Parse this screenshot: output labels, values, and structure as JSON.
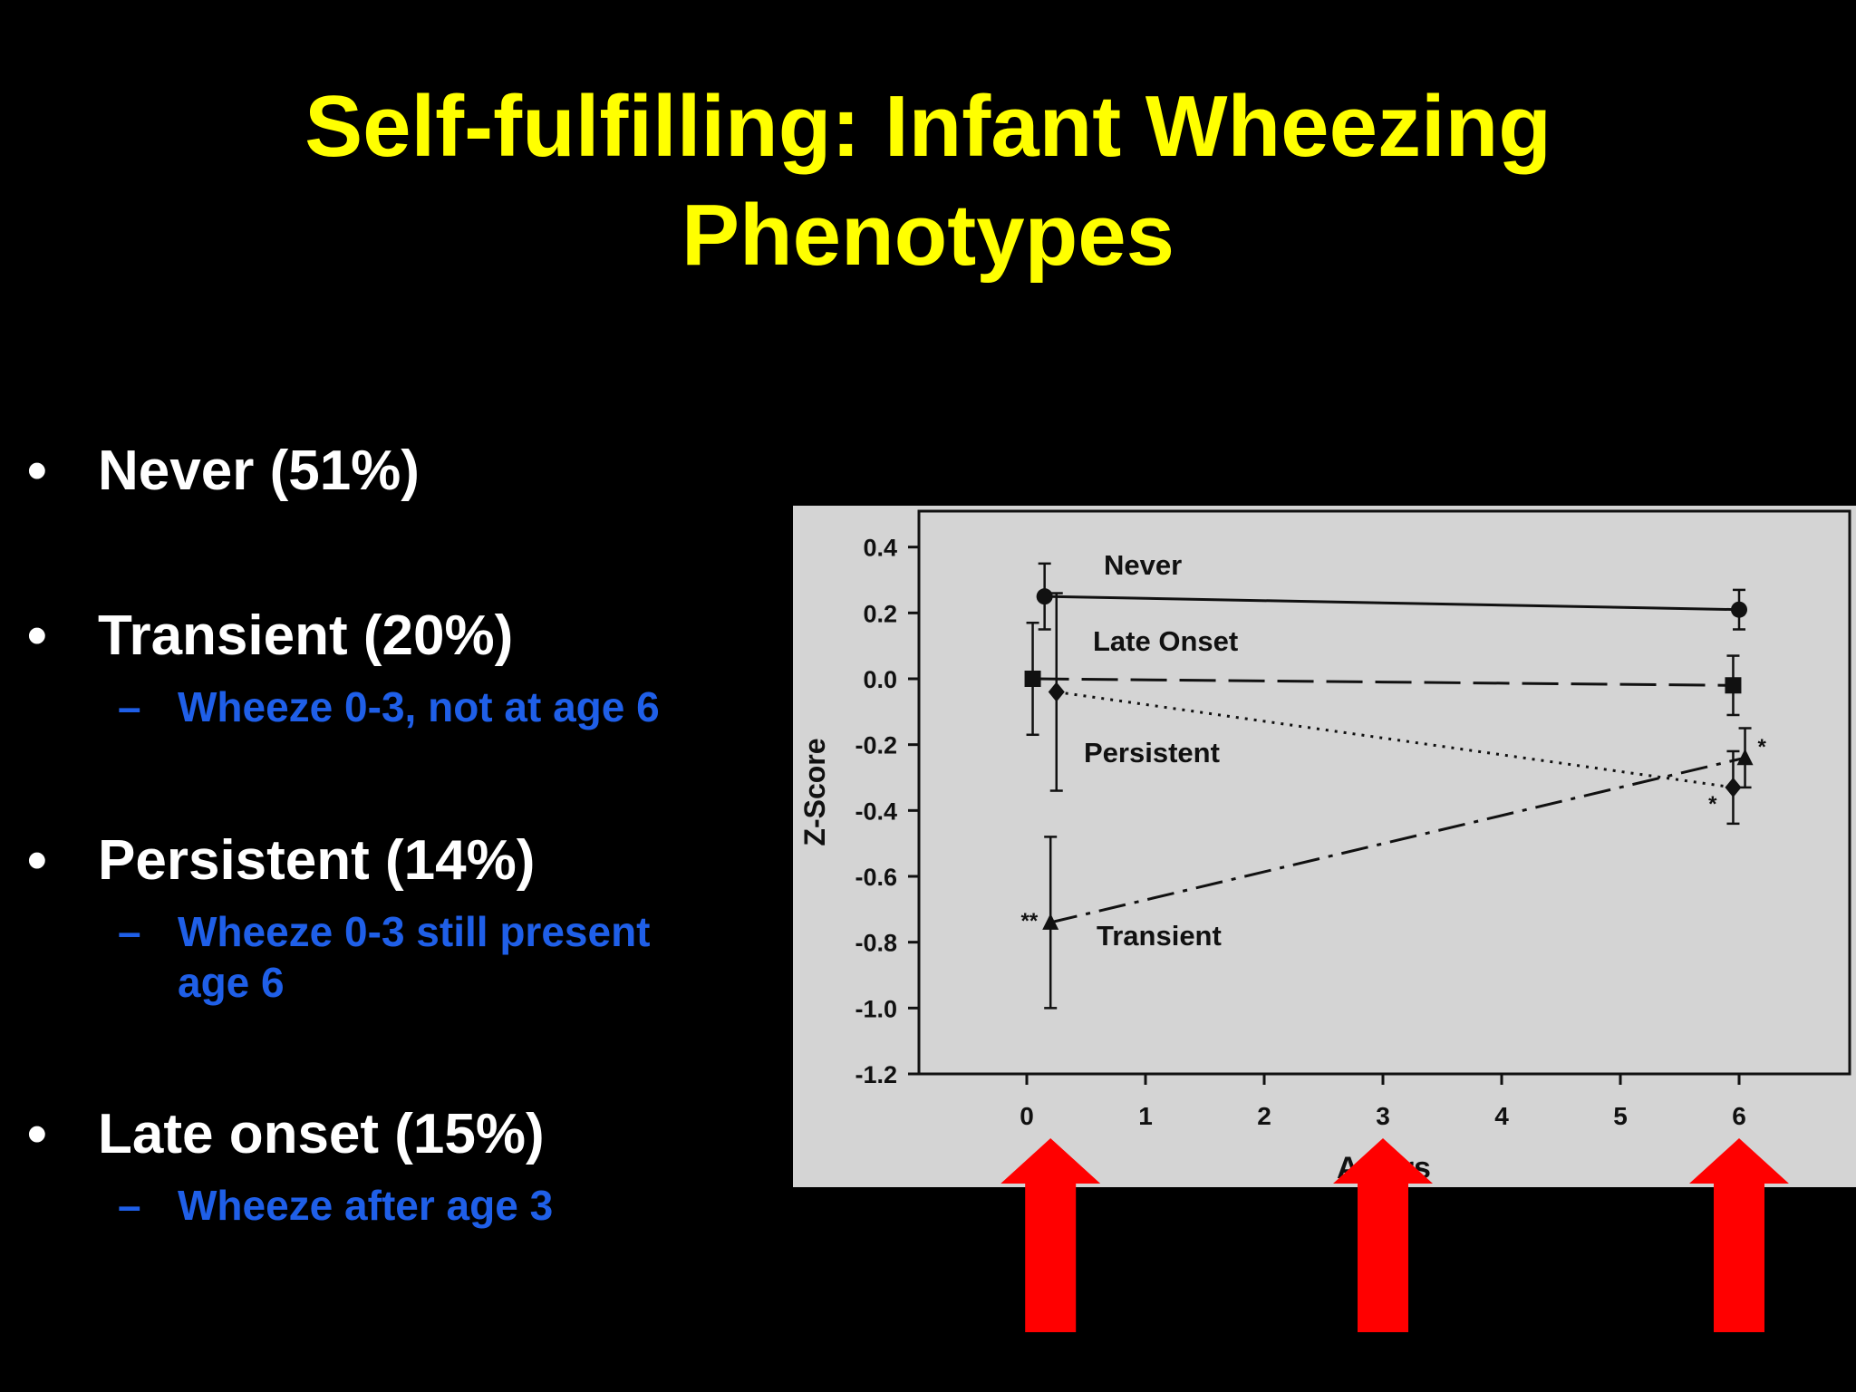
{
  "slide": {
    "title_line1": "Self-fulfilling: Infant Wheezing",
    "title_line2": "Phenotypes",
    "bullets": [
      {
        "label": "Never  (51%)"
      },
      {
        "label": "Transient (20%)",
        "sub": [
          "Wheeze 0-3, not at age 6"
        ]
      },
      {
        "label": "Persistent (14%)",
        "sub": [
          "Wheeze 0-3 still present",
          "age 6"
        ]
      },
      {
        "label": "Late onset (15%)",
        "sub": [
          "Wheeze after age 3"
        ]
      }
    ],
    "bullet_glyph": "•",
    "sub_glyph": "–"
  },
  "colors": {
    "title": "#ffff00",
    "bullet_text": "#ffffff",
    "sub_text": "#1f5fe8",
    "chart_bg": "#d4d4d4",
    "arrow": "#ff0000"
  },
  "chart_data": {
    "type": "line",
    "xlabel": "Ac   rs",
    "ylabel": "Z-Score",
    "xlim": [
      -0.9,
      6.95
    ],
    "ylim": [
      -1.2,
      0.45
    ],
    "x_ticks": [
      0,
      1,
      2,
      3,
      4,
      5,
      6
    ],
    "y_ticks": [
      0.4,
      0.2,
      0.0,
      -0.2,
      -0.4,
      -0.6,
      -0.8,
      -1.0,
      -1.2
    ],
    "y_tick_labels": [
      "0.4",
      "0.2",
      "0.0",
      "-0.2",
      "-0.4",
      "-0.6",
      "-0.8",
      "-1.0",
      "-1.2"
    ],
    "grid": false,
    "series": [
      {
        "name": "Never",
        "style": "solid",
        "marker": "circle",
        "x": [
          0.15,
          6.0
        ],
        "y": [
          0.25,
          0.21
        ],
        "err": [
          0.1,
          0.06
        ],
        "stars": [
          "",
          ""
        ]
      },
      {
        "name": "Late Onset",
        "style": "longdash",
        "marker": "square",
        "x": [
          0.05,
          5.95
        ],
        "y": [
          0.0,
          -0.02
        ],
        "err": [
          0.17,
          0.09
        ],
        "stars": [
          "",
          ""
        ]
      },
      {
        "name": "Persistent",
        "style": "dotted",
        "marker": "diamond",
        "x": [
          0.25,
          5.95
        ],
        "y": [
          -0.04,
          -0.33
        ],
        "err": [
          0.3,
          0.11
        ],
        "stars": [
          "",
          "*"
        ]
      },
      {
        "name": "Transient",
        "style": "dashdot",
        "marker": "triangle",
        "x": [
          0.2,
          6.05
        ],
        "y": [
          -0.74,
          -0.24
        ],
        "err": [
          0.26,
          0.09
        ],
        "stars": [
          "**",
          "*"
        ]
      }
    ],
    "arrows_at_x": [
      0.2,
      3.0,
      6.0
    ]
  }
}
